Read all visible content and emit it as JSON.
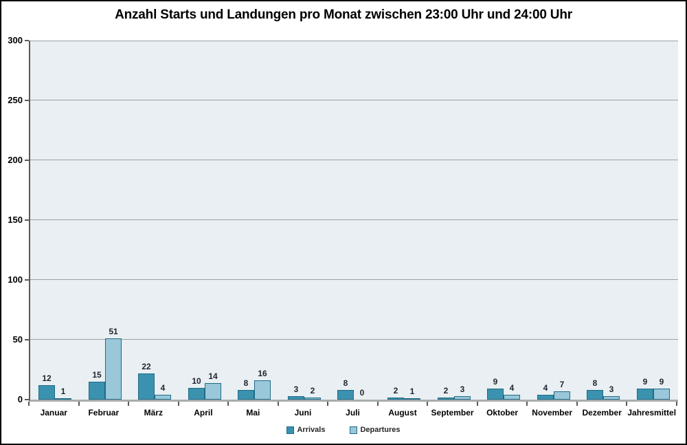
{
  "chart_data": {
    "type": "bar",
    "title": "Anzahl Starts und Landungen pro Monat zwischen 23:00 Uhr und 24:00 Uhr",
    "xlabel": "",
    "ylabel": "",
    "categories": [
      "Januar",
      "Februar",
      "März",
      "April",
      "Mai",
      "Juni",
      "Juli",
      "August",
      "September",
      "Oktober",
      "November",
      "Dezember",
      "Jahresmittel"
    ],
    "series": [
      {
        "name": "Arrivals",
        "color": "#3b92ae",
        "border_color": "#1d6a85",
        "values": [
          12,
          15,
          22,
          10,
          8,
          3,
          8,
          2,
          2,
          9,
          4,
          8,
          9
        ]
      },
      {
        "name": "Departures",
        "color": "#9ac7d9",
        "border_color": "#1d6a85",
        "values": [
          1,
          51,
          4,
          14,
          16,
          2,
          0,
          1,
          3,
          4,
          7,
          3,
          9
        ]
      }
    ],
    "ylim": [
      0,
      300
    ],
    "yticks": [
      0,
      50,
      100,
      150,
      200,
      250,
      300
    ],
    "grid": "horizontal",
    "legend_position": "bottom",
    "data_labels": true,
    "colors": {
      "plot_background": "#e9eff2",
      "gridline": "#9aa0a4",
      "y_axis_line": "#595959",
      "x_axis_line": "#a8acae",
      "frame_border": "#000000",
      "label_text": "#1f2430"
    }
  }
}
